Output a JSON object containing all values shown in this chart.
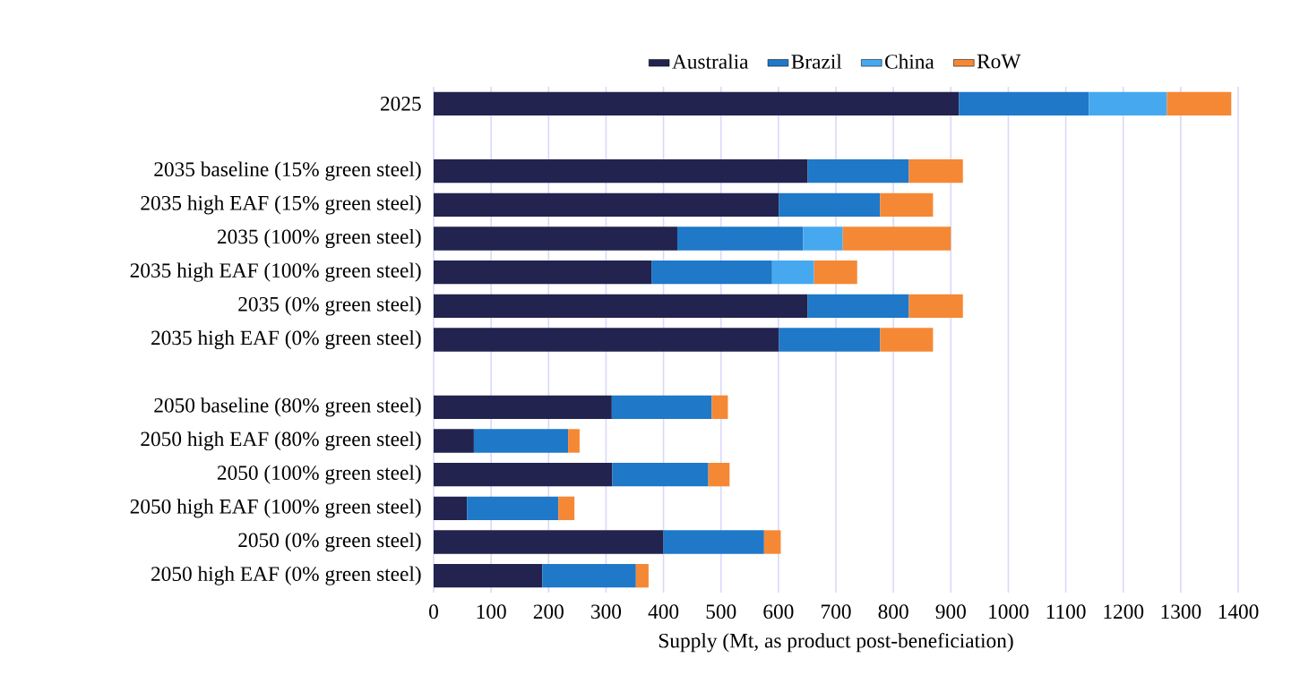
{
  "chart_data": {
    "type": "bar",
    "orientation": "horizontal",
    "stacked": true,
    "xlabel": "Supply (Mt, as product post-beneficiation)",
    "categories": [
      "2025",
      null,
      "2035 baseline (15% green steel)",
      "2035 high EAF (15% green steel)",
      "2035 (100% green steel)",
      "2035 high EAF (100% green steel)",
      "2035 (0% green steel)",
      "2035 high EAF (0% green steel)",
      null,
      "2050 baseline (80% green steel)",
      "2050 high EAF (80% green steel)",
      "2050 (100% green steel)",
      "2050 high EAF (100% green steel)",
      "2050 (0% green steel)",
      "2050 high EAF (0% green steel)"
    ],
    "series": [
      {
        "name": "Australia",
        "color": "#22234f",
        "values": [
          914,
          null,
          651,
          601,
          424,
          379,
          651,
          601,
          null,
          310,
          70,
          311,
          58,
          400,
          189
        ]
      },
      {
        "name": "Brazil",
        "color": "#1f78c8",
        "values": [
          226,
          null,
          176,
          176,
          219,
          210,
          176,
          176,
          null,
          174,
          164,
          167,
          159,
          175,
          163
        ]
      },
      {
        "name": "China",
        "color": "#46a9ef",
        "values": [
          136,
          null,
          null,
          null,
          69,
          73,
          null,
          null,
          null,
          null,
          null,
          null,
          null,
          null,
          null
        ]
      },
      {
        "name": "RoW",
        "color": "#f58835",
        "values": [
          112,
          null,
          94,
          92,
          188,
          75,
          94,
          92,
          null,
          28,
          20,
          37,
          28,
          29,
          22
        ]
      }
    ],
    "xlim": [
      0,
      1400
    ],
    "xticks": [
      0,
      100,
      200,
      300,
      400,
      500,
      600,
      700,
      800,
      900,
      1000,
      1100,
      1200,
      1300,
      1400
    ],
    "grid": "x",
    "legend": "top"
  }
}
